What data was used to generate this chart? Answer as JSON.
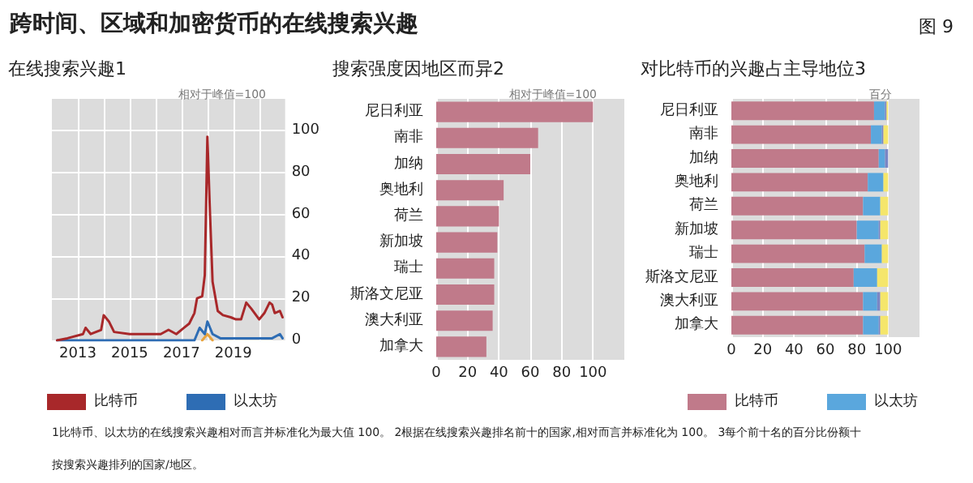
{
  "chart_data": [
    {
      "type": "line",
      "title": "在线搜索兴趣1",
      "subtitle": "相对于峰值=100",
      "annotations": [
        "跨时间、区域和加密货币的在线搜索兴趣",
        "图 9",
        "1比特币、以太坊的在线搜索兴趣相对而言并标准化为最大值 100。 2根据在线搜索兴趣排名前十的国家,相对而言并标准化为 100。 3每个前十名的百分比份额十",
        "按搜索兴趣排列的国家/地区。"
      ],
      "xlim": [
        2012,
        2021
      ],
      "xticks": [
        2013,
        {
          "value": 2014,
          "label": null
        },
        2015,
        {
          "value": 2016,
          "label": null
        },
        2017,
        {
          "value": 2018,
          "label": null
        },
        2019,
        {
          "value": 2020,
          "label": null
        }
      ],
      "ylim": [
        0,
        115
      ],
      "yticks": [
        0,
        20,
        40,
        60,
        80,
        100
      ],
      "grid": true,
      "legend": "bottom",
      "marker": "none",
      "line_style": "solid",
      "series": [
        {
          "name": "比特币",
          "color": "#a8282a",
          "x": [
            2012.2,
            2012.6,
            2013.2,
            2013.3,
            2013.5,
            2013.9,
            2014.0,
            2014.2,
            2014.4,
            2015.0,
            2015.6,
            2016.2,
            2016.5,
            2016.8,
            2017.1,
            2017.3,
            2017.5,
            2017.6,
            2017.8,
            2017.9,
            2018.0,
            2018.1,
            2018.2,
            2018.4,
            2018.6,
            2018.9,
            2019.1,
            2019.3,
            2019.5,
            2019.7,
            2020.0,
            2020.2,
            2020.4,
            2020.5,
            2020.6,
            2020.8,
            2020.9
          ],
          "values": [
            0,
            1,
            3,
            6,
            3,
            5,
            12,
            9,
            4,
            3,
            3,
            3,
            5,
            3,
            6,
            8,
            13,
            20,
            21,
            31,
            97,
            61,
            28,
            14,
            12,
            11,
            10,
            10,
            18,
            15,
            10,
            13,
            18,
            17,
            13,
            14,
            11
          ]
        },
        {
          "name": "以太坊",
          "color": "#2e6db4",
          "x": [
            2012.2,
            2017.5,
            2017.7,
            2017.9,
            2018.0,
            2018.2,
            2018.5,
            2019.5,
            2020.5,
            2020.8,
            2020.9
          ],
          "values": [
            0,
            0,
            6,
            3,
            9,
            3,
            1,
            1,
            1,
            3,
            1
          ]
        },
        {
          "color": "#e8a33d",
          "x": [
            2017.8,
            2018.0,
            2018.2
          ],
          "values": [
            0,
            3,
            0
          ]
        }
      ]
    },
    {
      "type": "bar",
      "orientation": "horizontal",
      "title": "搜索强度因地区而异2",
      "subtitle": "相对于峰值=100",
      "categories": [
        "尼日利亚",
        "南非",
        "加纳",
        "奥地利",
        "荷兰",
        "新加坡",
        "瑞士",
        "斯洛文尼亚",
        "澳大利亚",
        "加拿大"
      ],
      "values": [
        100,
        65,
        60,
        43,
        40,
        39,
        37,
        37,
        36,
        32
      ],
      "color": "#c07a8a",
      "xlim": [
        0,
        120
      ],
      "xticks": [
        0,
        20,
        40,
        60,
        80,
        100
      ],
      "grid": "x"
    },
    {
      "type": "bar",
      "orientation": "horizontal",
      "stacked": true,
      "title": "对比特币的兴趣占主导地位3",
      "subtitle": "百分",
      "categories": [
        "尼日利亚",
        "南非",
        "加纳",
        "奥地利",
        "荷兰",
        "新加坡",
        "瑞士",
        "斯洛文尼亚",
        "澳大利亚",
        "加拿大"
      ],
      "xlim": [
        0,
        120
      ],
      "xticks": [
        0,
        20,
        40,
        60,
        80,
        100
      ],
      "grid": "x",
      "legend": "bottom",
      "series": [
        {
          "name": "比特币",
          "color": "#c07a8a",
          "values": [
            91,
            89,
            94,
            87,
            84,
            80,
            85,
            78,
            84,
            84
          ]
        },
        {
          "name": "以太坊",
          "color": "#5aa7dd",
          "values": [
            7,
            7,
            4,
            10,
            11,
            14,
            11,
            15,
            9,
            10
          ]
        },
        {
          "color": "#7b86c4",
          "values": [
            1,
            1,
            2,
            0,
            0,
            1,
            0,
            0,
            2,
            1
          ]
        },
        {
          "color": "#f5e66b",
          "values": [
            1,
            3,
            0,
            3,
            5,
            5,
            4,
            7,
            5,
            5
          ]
        }
      ]
    }
  ]
}
